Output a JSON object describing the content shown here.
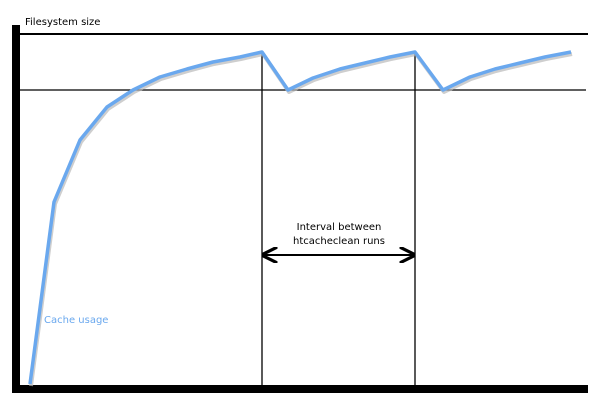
{
  "diagram": {
    "y_axis_label": "Filesystem size",
    "series_label": "Cache usage",
    "interval_label_line1": "Interval between",
    "interval_label_line2": "htcacheclean runs",
    "colors": {
      "curve": "#6aa8ee",
      "curve_shadow": "#b9b9b9",
      "axes": "#000000",
      "series_label": "#6aa8ee"
    }
  }
}
